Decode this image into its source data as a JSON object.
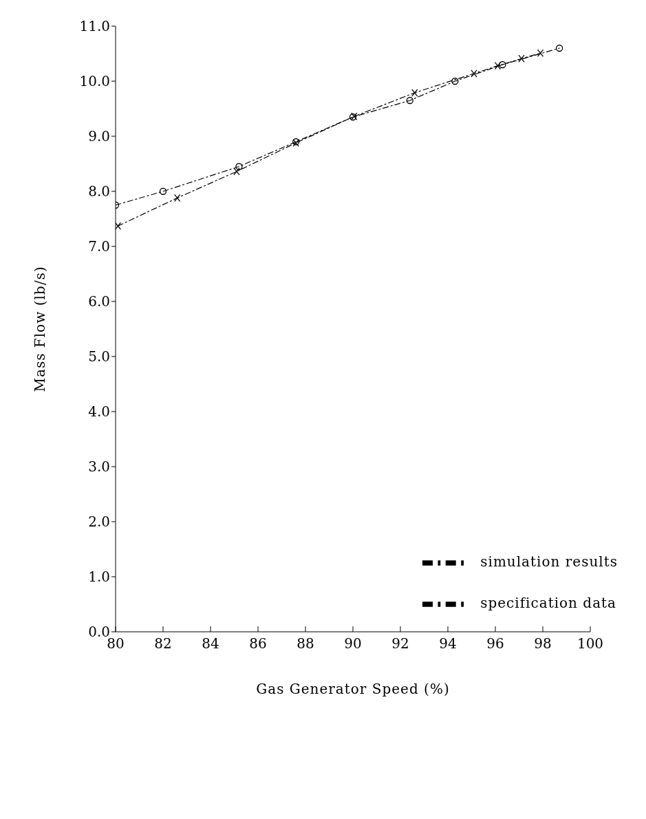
{
  "chart_data": {
    "type": "line",
    "xlabel": "Gas Generator Speed (%)",
    "ylabel": "Mass Flow (lb/s)",
    "xlim": [
      80,
      100
    ],
    "xticks": [
      80,
      82,
      84,
      86,
      88,
      90,
      92,
      94,
      96,
      98,
      100
    ],
    "ylim": [
      0,
      11
    ],
    "yticks": [
      {
        "value": 0,
        "label": "0.0"
      },
      {
        "value": 1,
        "label": "1.0"
      },
      {
        "value": 2,
        "label": "2.0"
      },
      {
        "value": 3,
        "label": "3.0"
      },
      {
        "value": 4,
        "label": "4.0"
      },
      {
        "value": 5,
        "label": "5.0"
      },
      {
        "value": 6,
        "label": "6.0"
      },
      {
        "value": 7,
        "label": "7.0"
      },
      {
        "value": 8,
        "label": "8.0"
      },
      {
        "value": 9,
        "label": "9.0"
      },
      {
        "value": 10,
        "label": "10.0"
      },
      {
        "value": 11,
        "label": "11.0"
      }
    ],
    "grid": false,
    "legend": "right",
    "line_style": "dashed",
    "series": [
      {
        "name": "specification data",
        "color": "#000000",
        "marker": "circle",
        "x": [
          80,
          82.0,
          85.2,
          87.6,
          90.0,
          92.4,
          94.3,
          96.3,
          98.7
        ],
        "values": [
          7.75,
          8.0,
          8.45,
          8.9,
          9.35,
          9.65,
          10.0,
          10.3,
          10.6
        ]
      },
      {
        "name": "simulation results",
        "color": "#000000",
        "marker": "cross",
        "x": [
          80.1,
          82.6,
          85.1,
          87.6,
          90.05,
          92.6,
          95.1,
          96.1,
          97.1,
          97.9
        ],
        "values": [
          7.37,
          7.88,
          8.36,
          8.88,
          9.36,
          9.79,
          10.14,
          10.28,
          10.41,
          10.51
        ]
      }
    ]
  }
}
